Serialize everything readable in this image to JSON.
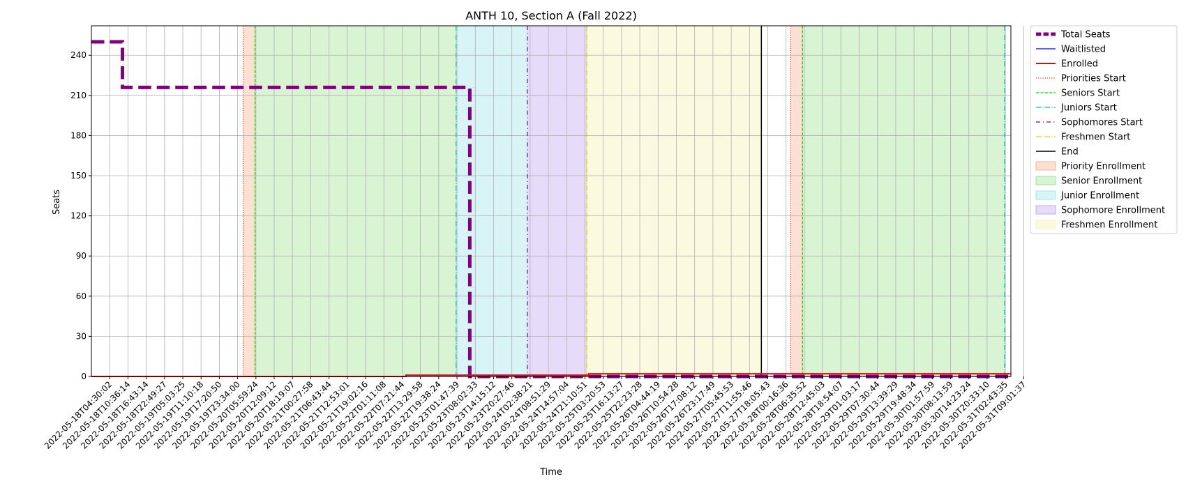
{
  "chart_data": {
    "type": "line",
    "title": "ANTH 10, Section A (Fall 2022)",
    "xlabel": "Time",
    "ylabel": "Seats",
    "ylim": [
      0,
      262
    ],
    "yticks": [
      0,
      30,
      60,
      90,
      120,
      150,
      180,
      210,
      240
    ],
    "grid": true,
    "legend_position": "outside-right",
    "x_tick_labels": [
      "2022-05-18T04:30:02",
      "2022-05-18T10:36:14",
      "2022-05-18T16:43:14",
      "2022-05-18T22:49:27",
      "2022-05-19T05:03:25",
      "2022-05-19T11:10:18",
      "2022-05-19T17:20:50",
      "2022-05-19T23:34:00",
      "2022-05-20T05:59:24",
      "2022-05-20T12:09:12",
      "2022-05-20T18:19:07",
      "2022-05-21T00:27:58",
      "2022-05-21T06:43:44",
      "2022-05-21T12:53:01",
      "2022-05-21T19:02:16",
      "2022-05-22T01:11:08",
      "2022-05-22T07:21:44",
      "2022-05-22T13:29:58",
      "2022-05-22T19:38:24",
      "2022-05-23T01:47:39",
      "2022-05-23T08:02:33",
      "2022-05-23T14:15:12",
      "2022-05-23T20:27:46",
      "2022-05-24T02:38:21",
      "2022-05-24T08:51:29",
      "2022-05-24T14:57:04",
      "2022-05-24T21:10:51",
      "2022-05-25T03:20:53",
      "2022-05-25T16:13:27",
      "2022-05-25T22:23:28",
      "2022-05-26T04:44:19",
      "2022-05-26T10:54:28",
      "2022-05-26T17:08:12",
      "2022-05-26T23:17:49",
      "2022-05-27T05:45:53",
      "2022-05-27T11:55:46",
      "2022-05-27T18:05:43",
      "2022-05-28T00:16:36",
      "2022-05-28T06:35:52",
      "2022-05-28T12:45:03",
      "2022-05-28T18:54:07",
      "2022-05-29T01:03:17",
      "2022-05-29T07:30:44",
      "2022-05-29T13:39:29",
      "2022-05-29T19:48:34",
      "2022-05-30T01:57:59",
      "2022-05-30T08:13:59",
      "2022-05-30T14:23:24",
      "2022-05-30T20:33:10",
      "2022-05-31T02:43:35",
      "2022-05-31T09:01:37"
    ],
    "x_range": [
      -1,
      49.3
    ],
    "series": [
      {
        "name": "Total Seats",
        "color": "#800080",
        "style": "dashed",
        "points": [
          [
            -1,
            250
          ],
          [
            0.7,
            250
          ],
          [
            0.7,
            216
          ],
          [
            19.7,
            216
          ],
          [
            19.7,
            0
          ],
          [
            49.3,
            0
          ]
        ]
      },
      {
        "name": "Waitlisted",
        "color": "#0000ff",
        "style": "solid",
        "points": [
          [
            -1,
            0
          ],
          [
            49.3,
            0
          ]
        ]
      },
      {
        "name": "Enrolled",
        "color": "#ff0000",
        "style": "solid",
        "points": [
          [
            -1,
            0
          ],
          [
            16.2,
            0
          ],
          [
            16.2,
            1
          ],
          [
            26.2,
            1
          ],
          [
            26.2,
            2
          ],
          [
            49.3,
            2
          ]
        ]
      }
    ],
    "markers": [
      {
        "name": "Priorities Start",
        "color": "#ff3300",
        "style": "dotted",
        "x": 7.3
      },
      {
        "name": "Seniors Start",
        "color": "#22cc00",
        "style": "dashed",
        "x": 7.95
      },
      {
        "name": "Juniors Start",
        "color": "#00c0c0",
        "style": "dashdot",
        "x": 18.95
      },
      {
        "name": "Sophomores Start",
        "color": "#6600cc",
        "style": "dashdot2",
        "x": 22.85
      },
      {
        "name": "Freshmen Start",
        "color": "#e6d000",
        "style": "dashdot",
        "x": 26.1
      },
      {
        "name": "End",
        "color": "#000000",
        "style": "solid",
        "x": 35.65
      },
      {
        "name": "",
        "color": "#ff3300",
        "style": "dotted",
        "x": 37.25
      },
      {
        "name": "",
        "color": "#22cc00",
        "style": "dashed",
        "x": 37.9
      },
      {
        "name": "",
        "color": "#00c0c0",
        "style": "dashdot",
        "x": 48.95
      }
    ],
    "spans": [
      {
        "name": "Priority Enrollment",
        "color": "#f4a582",
        "x0": 7.3,
        "x1": 7.95
      },
      {
        "name": "Senior Enrollment",
        "color": "#90e080",
        "x0": 7.95,
        "x1": 18.95
      },
      {
        "name": "Junior Enrollment",
        "color": "#8ee0e8",
        "x0": 18.95,
        "x1": 22.85
      },
      {
        "name": "Sophomore Enrollment",
        "color": "#b898ec",
        "x0": 22.85,
        "x1": 26.1
      },
      {
        "name": "Freshmen Enrollment",
        "color": "#f2f2a8",
        "x0": 26.1,
        "x1": 35.65
      },
      {
        "name": "",
        "color": "#f4a582",
        "x0": 37.25,
        "x1": 37.9
      },
      {
        "name": "",
        "color": "#90e080",
        "x0": 37.9,
        "x1": 48.95
      }
    ]
  }
}
